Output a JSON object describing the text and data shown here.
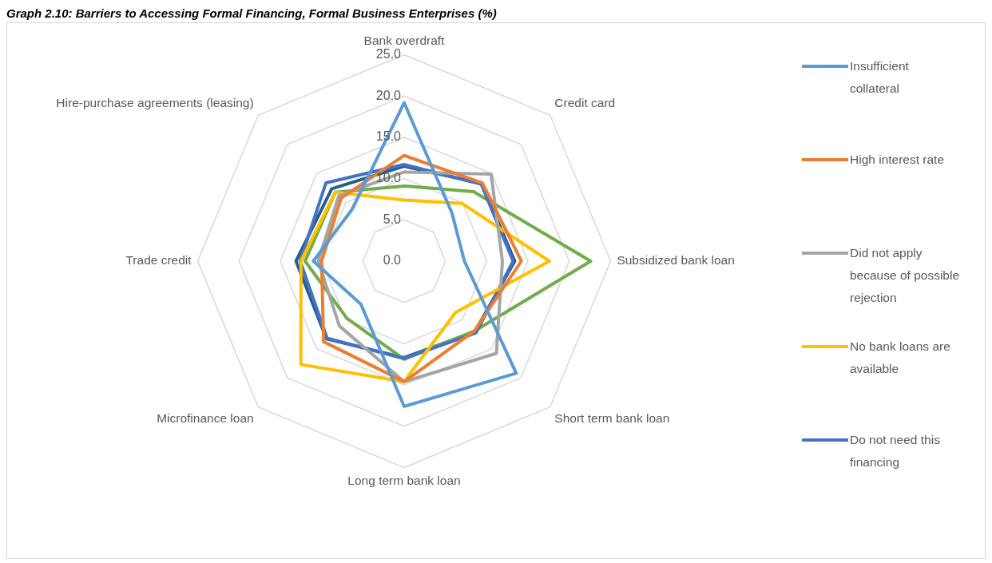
{
  "chart_data": {
    "type": "radar",
    "title": "Graph 2.10: Barriers to Accessing Formal Financing, Formal Business Enterprises (%)",
    "categories": [
      "Bank overdraft",
      "Credit card",
      "Subsidized bank loan",
      "Short term bank loan",
      "Long term bank loan",
      "Microfinance loan",
      "Trade credit",
      "Hire-purchase agreements (leasing)"
    ],
    "series": [
      {
        "name": "Insufficient collateral",
        "color": "#5b9bd5",
        "values": [
          19.2,
          8.2,
          7.3,
          19.2,
          17.6,
          7.4,
          11.0,
          8.9
        ]
      },
      {
        "name": "High interest rate",
        "color": "#ed7d31",
        "values": [
          12.8,
          13.4,
          14.2,
          12.0,
          14.6,
          13.8,
          10.0,
          10.8
        ]
      },
      {
        "name": "Did not apply because of possible rejection",
        "color": "#a5a5a5",
        "values": [
          10.8,
          14.9,
          11.9,
          15.8,
          14.6,
          11.1,
          10.4,
          11.2
        ]
      },
      {
        "name": "No bank loans are available",
        "color": "#ffc000",
        "values": [
          7.4,
          9.9,
          17.6,
          8.8,
          14.6,
          17.7,
          12.5,
          11.8
        ]
      },
      {
        "name": "Do not need this financing",
        "color": "#4472c4",
        "values": [
          11.7,
          13.2,
          13.2,
          12.3,
          11.8,
          13.2,
          12.6,
          13.4
        ]
      },
      {
        "color": "#70ad47",
        "values": [
          9.1,
          11.9,
          22.6,
          12.0,
          11.9,
          9.8,
          12.0,
          11.8
        ]
      },
      {
        "color": "#255e91",
        "values": [
          11.5,
          13.3,
          13.4,
          12.1,
          11.7,
          13.3,
          13.1,
          12.4
        ]
      }
    ],
    "ylim": [
      0,
      25
    ],
    "yticks": [
      {
        "value": 0,
        "label": "0.0"
      },
      {
        "value": 5,
        "label": "5.0"
      },
      {
        "value": 10,
        "label": "10.0"
      },
      {
        "value": 15,
        "label": "15.0"
      },
      {
        "value": 20,
        "label": "20.0"
      },
      {
        "value": 25,
        "label": "25.0"
      }
    ],
    "grid": true,
    "legend": "right",
    "marker": "none",
    "line_style": "solid"
  }
}
